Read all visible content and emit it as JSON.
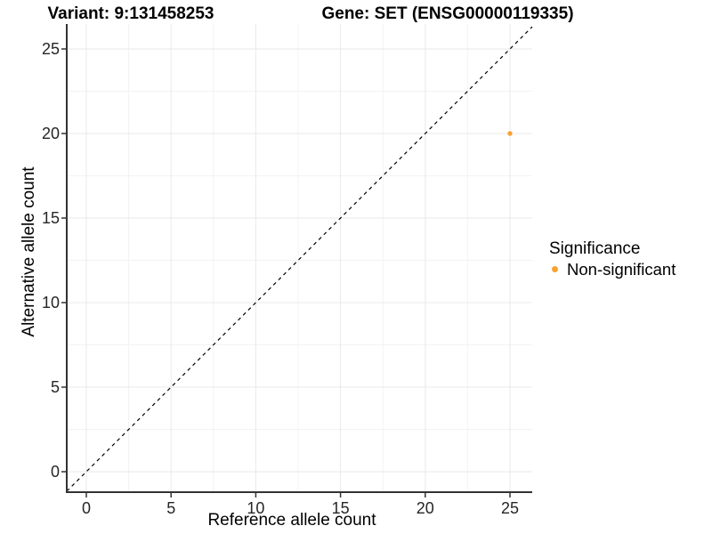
{
  "page": {
    "background": "#ffffff"
  },
  "titles": {
    "variant": "Variant: 9:131458253",
    "gene": "Gene: SET (ENSG00000119335)"
  },
  "chart_data": {
    "type": "scatter",
    "title": "Variant: 9:131458253 / Gene: SET (ENSG00000119335)",
    "xlabel": "Reference allele count",
    "ylabel": "Alternative allele count",
    "xlim": [
      -1.25,
      26.3
    ],
    "ylim": [
      -1.25,
      26.5
    ],
    "x_ticks": [
      0,
      5,
      10,
      15,
      20,
      25
    ],
    "y_ticks": [
      0,
      5,
      10,
      15,
      20,
      25
    ],
    "x_minor_ticks": [
      2.5,
      7.5,
      12.5,
      17.5,
      22.5
    ],
    "y_minor_ticks": [
      2.5,
      7.5,
      12.5,
      17.5,
      22.5
    ],
    "grid": true,
    "reference_line": {
      "kind": "identity y=x",
      "style": "dashed",
      "color": "#000000"
    },
    "series": [
      {
        "name": "Non-significant",
        "color": "#F9A232",
        "points": [
          {
            "x": 25,
            "y": 20
          }
        ]
      }
    ],
    "legend": {
      "title": "Significance",
      "position": "right",
      "entries": [
        {
          "label": "Non-significant",
          "color": "#F9A232"
        }
      ]
    },
    "theme": {
      "background": "#ffffff",
      "grid_major": "#E9E9E9",
      "grid_minor": "#F3F3F3",
      "axis_line": "#333333",
      "tick_label_color": "#262626"
    }
  }
}
